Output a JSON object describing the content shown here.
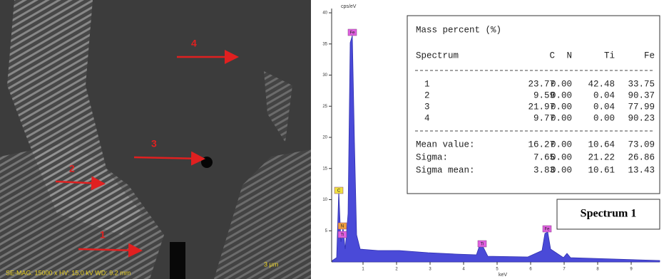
{
  "sem_image": {
    "markers": [
      "1",
      "2",
      "3",
      "4"
    ],
    "info": "SE-MAG: 15000 x HV: 15.0 kV WD: 9.2 mm",
    "scale": "3 μm"
  },
  "spectrum": {
    "y_unit": "cps/eV",
    "x_unit": "keV",
    "yticks": [
      5,
      10,
      15,
      20,
      25,
      30,
      35,
      40
    ],
    "xticks": [
      1,
      2,
      3,
      4,
      5,
      6,
      7,
      8,
      9
    ],
    "peaks": [
      "Fe",
      "C",
      "N",
      "Ti",
      "Ti",
      "Fe"
    ],
    "caption": "Spectrum 1"
  },
  "table": {
    "title": "Mass percent (%)",
    "header": [
      "Spectrum",
      "C",
      "N",
      "Ti",
      "Fe"
    ],
    "rows": [
      [
        "1",
        "23.77",
        "0.00",
        "42.48",
        "33.75"
      ],
      [
        "2",
        "9.59",
        "0.00",
        "0.04",
        "90.37"
      ],
      [
        "3",
        "21.97",
        "0.00",
        "0.04",
        "77.99"
      ],
      [
        "4",
        "9.77",
        "0.00",
        "0.00",
        "90.23"
      ]
    ],
    "summary": [
      [
        "Mean value:",
        "16.27",
        "0.00",
        "10.64",
        "73.09"
      ],
      [
        "Sigma:",
        "7.65",
        "0.00",
        "21.22",
        "26.86"
      ],
      [
        "Sigma mean:",
        "3.83",
        "0.00",
        "10.61",
        "13.43"
      ]
    ]
  }
}
